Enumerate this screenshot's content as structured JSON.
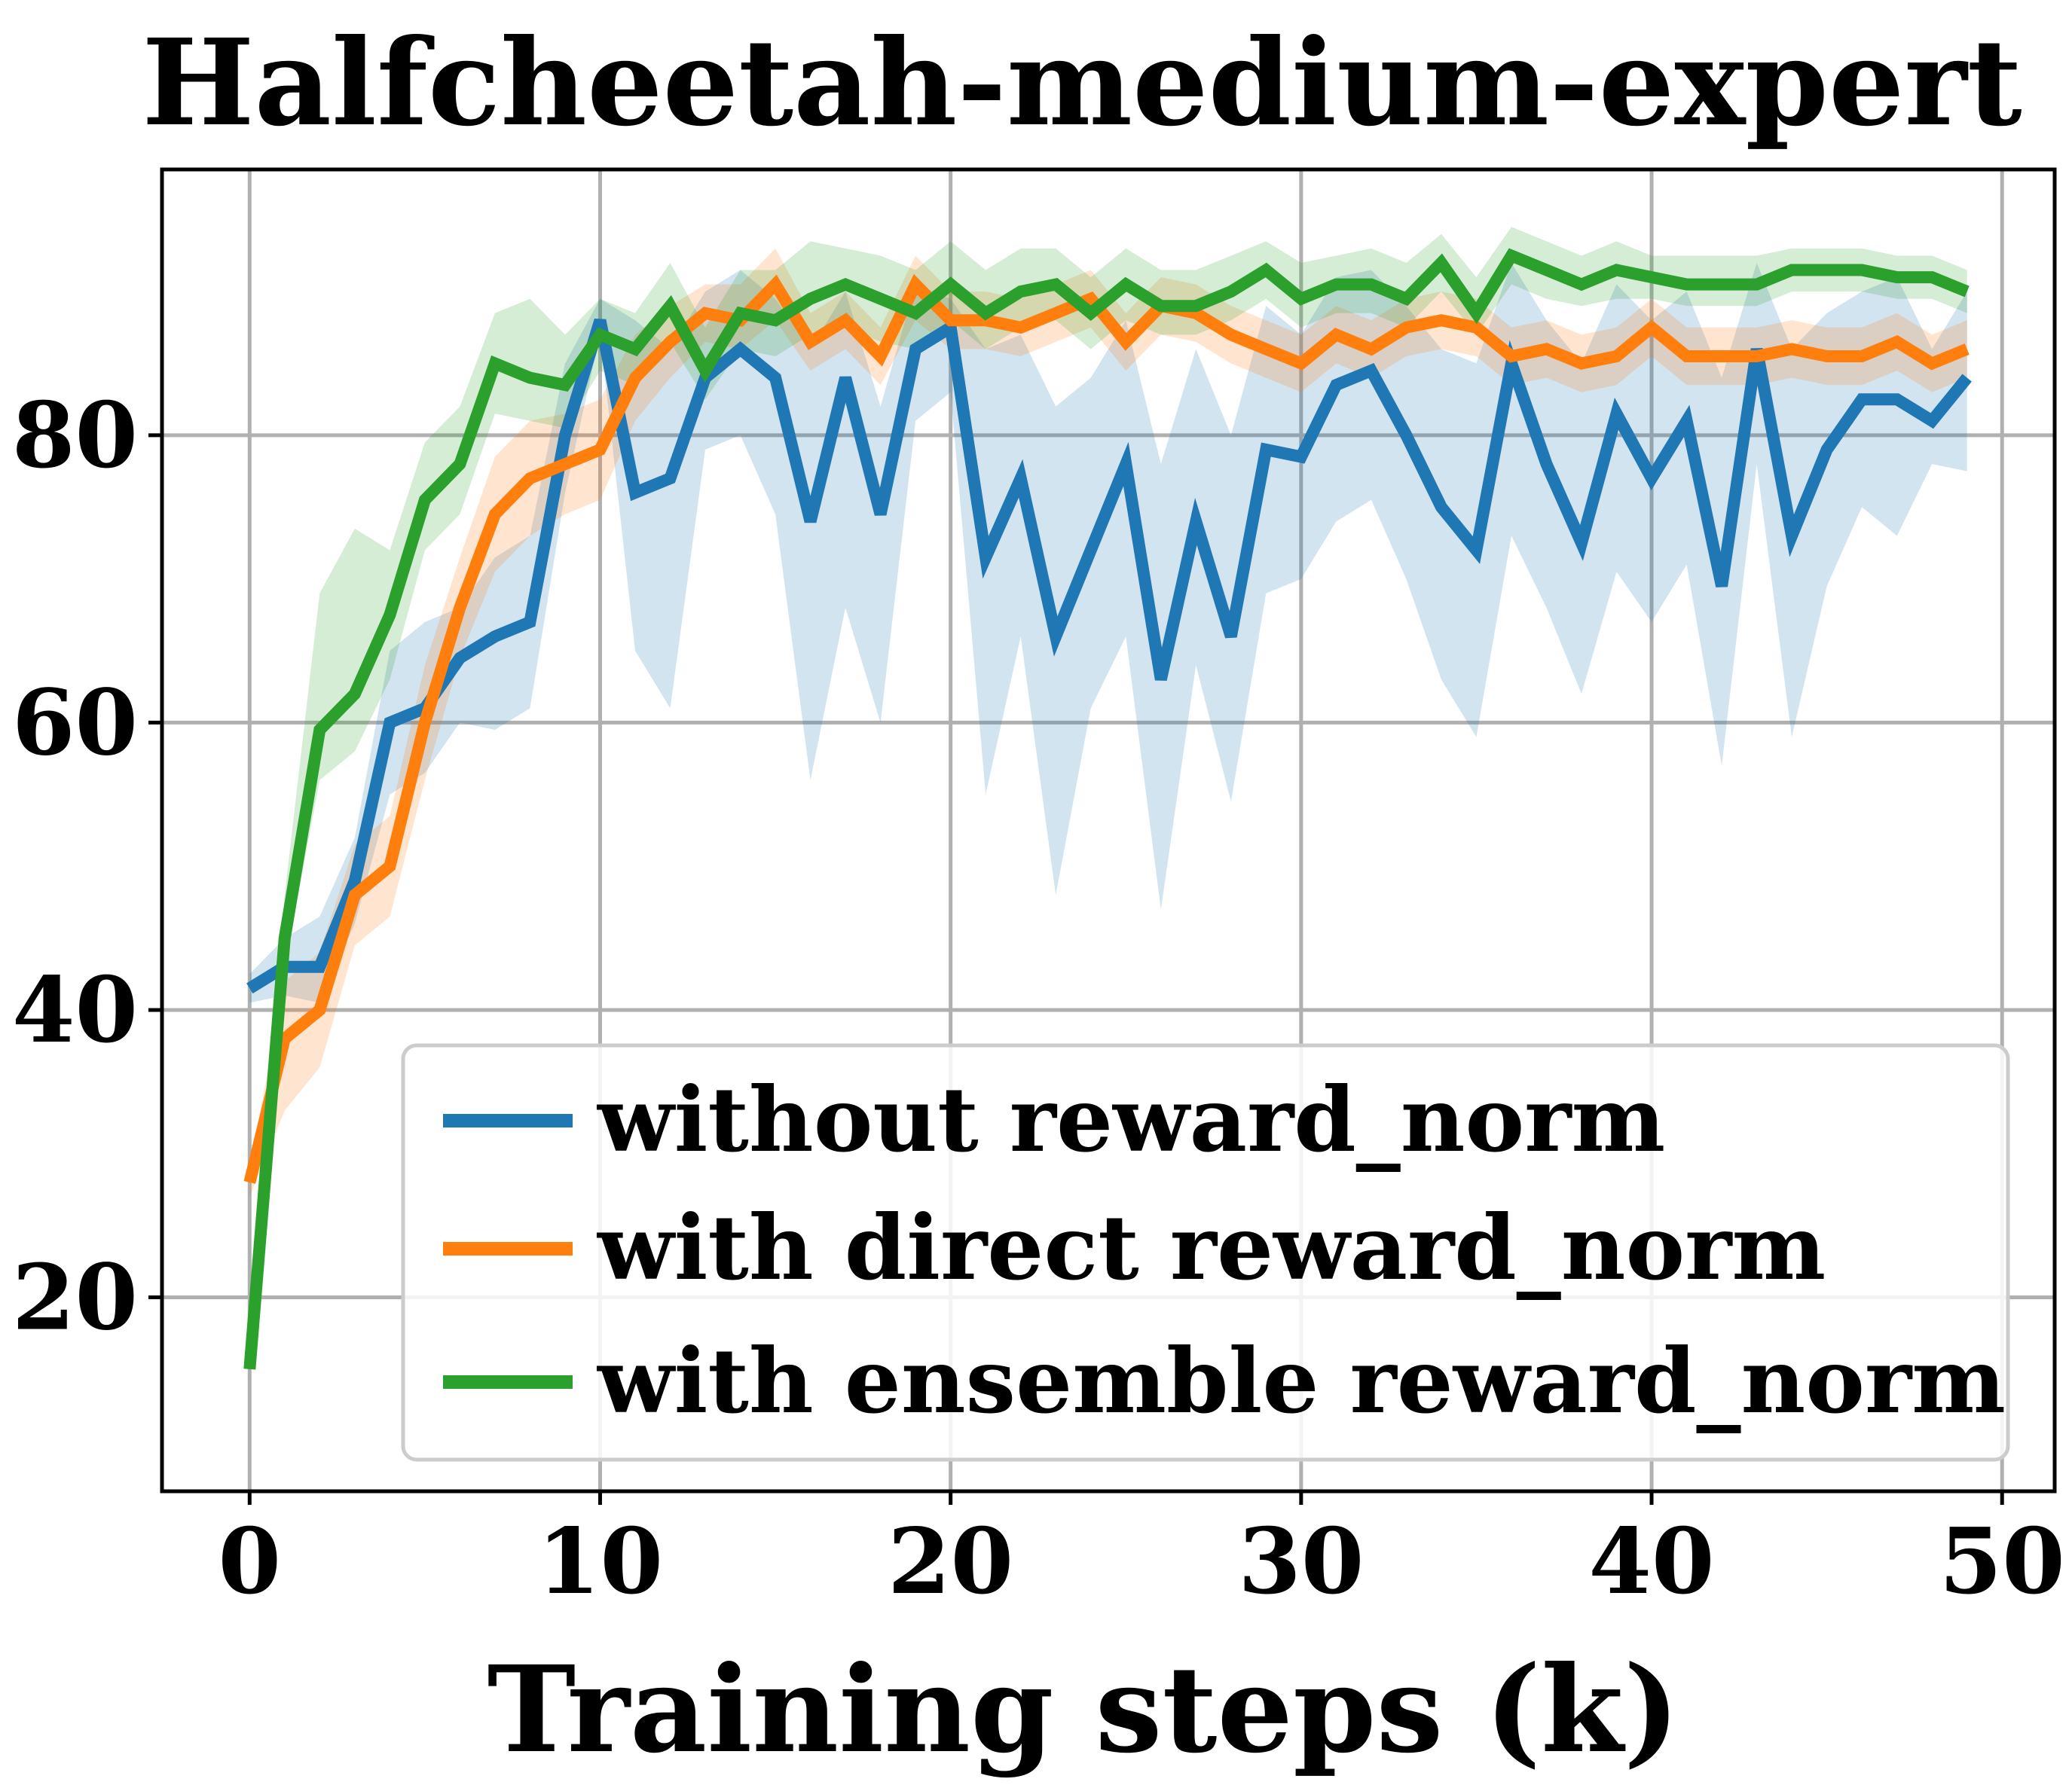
{
  "chart_data": {
    "type": "line",
    "title": "Halfcheetah-medium-expert",
    "xlabel": "Training steps (k)",
    "ylabel": "",
    "xlim": [
      -2.5,
      51.5
    ],
    "ylim": [
      6.5,
      98.5
    ],
    "xticks": [
      0,
      10,
      20,
      30,
      40,
      50
    ],
    "yticks": [
      20,
      40,
      60,
      80
    ],
    "xtick_labels": [
      "0",
      "10",
      "20",
      "30",
      "40",
      "50"
    ],
    "ytick_labels": [
      "20",
      "40",
      "60",
      "80"
    ],
    "grid": true,
    "legend_position": "lower-right",
    "x": [
      0,
      1,
      2,
      3,
      4,
      5,
      6,
      7,
      8,
      9,
      10,
      11,
      12,
      13,
      14,
      15,
      16,
      17,
      18,
      19,
      20,
      21,
      22,
      23,
      24,
      25,
      26,
      27,
      28,
      29,
      30,
      31,
      32,
      33,
      34,
      35,
      36,
      37,
      38,
      39,
      40,
      41,
      42,
      43,
      44,
      45,
      46,
      47,
      48,
      49
    ],
    "series": [
      {
        "name": "without reward_norm",
        "color": "#1f77b4",
        "values": [
          41.5,
          43.0,
          43.0,
          49.0,
          60.0,
          61.0,
          64.5,
          66.0,
          67.0,
          80.0,
          88.0,
          76.0,
          77.0,
          84.0,
          86.0,
          84.0,
          74.0,
          84.0,
          74.5,
          86.0,
          87.5,
          71.5,
          77.0,
          66.0,
          72.0,
          78.0,
          63.0,
          74.0,
          66.0,
          79.0,
          78.5,
          83.5,
          84.5,
          80.0,
          75.0,
          72.0,
          85.0,
          78.0,
          72.5,
          81.5,
          77.0,
          81.0,
          69.5,
          86.0,
          73.0,
          79.0,
          82.5,
          82.5,
          81.0,
          84.0
        ],
        "lower": [
          40.5,
          41.0,
          40.5,
          46.0,
          55.0,
          56.5,
          60.0,
          59.5,
          61.0,
          76.0,
          87.0,
          65.0,
          61.0,
          79.0,
          80.0,
          74.5,
          56.0,
          68.0,
          60.0,
          81.0,
          83.0,
          55.0,
          66.0,
          48.0,
          61.0,
          66.0,
          47.0,
          64.0,
          54.5,
          69.0,
          70.0,
          74.0,
          75.5,
          70.0,
          63.0,
          59.0,
          73.0,
          68.0,
          62.0,
          70.5,
          67.0,
          71.0,
          57.0,
          78.0,
          59.0,
          69.5,
          75.0,
          73.0,
          78.0,
          77.5
        ],
        "upper": [
          42.5,
          45.0,
          46.5,
          52.0,
          65.0,
          67.0,
          68.0,
          71.5,
          73.0,
          85.0,
          89.5,
          88.0,
          86.0,
          90.0,
          91.5,
          89.5,
          86.0,
          90.0,
          82.0,
          90.5,
          89.5,
          86.0,
          87.0,
          82.0,
          84.0,
          88.0,
          78.0,
          86.0,
          80.0,
          89.0,
          87.0,
          91.0,
          91.5,
          89.0,
          86.0,
          85.0,
          92.0,
          88.0,
          85.0,
          90.5,
          88.0,
          90.0,
          84.0,
          92.0,
          86.0,
          88.5,
          90.0,
          91.0,
          86.0,
          90.0
        ]
      },
      {
        "name": "with direct reward_norm",
        "color": "#ff7f0e",
        "values": [
          28.0,
          38.0,
          40.0,
          48.0,
          50.0,
          60.0,
          68.0,
          74.5,
          77.0,
          78.0,
          79.0,
          84.0,
          86.5,
          88.5,
          88.0,
          90.5,
          86.5,
          88.0,
          85.5,
          90.5,
          88.0,
          88.0,
          87.5,
          88.5,
          89.5,
          86.5,
          89.0,
          88.5,
          87.0,
          86.0,
          85.0,
          87.0,
          86.0,
          87.5,
          88.0,
          87.5,
          85.5,
          86.0,
          85.0,
          85.5,
          87.5,
          85.5,
          85.5,
          85.5,
          86.0,
          85.5,
          85.5,
          86.5,
          85.0,
          86.0
        ],
        "lower": [
          27.0,
          33.0,
          36.0,
          44.5,
          46.5,
          56.0,
          64.5,
          70.5,
          73.0,
          74.5,
          75.5,
          81.0,
          84.0,
          86.5,
          86.0,
          88.0,
          84.5,
          86.0,
          83.5,
          88.0,
          86.0,
          86.0,
          85.5,
          86.5,
          87.5,
          84.5,
          87.0,
          86.5,
          85.0,
          84.0,
          83.0,
          85.0,
          84.0,
          85.5,
          86.0,
          85.5,
          83.5,
          84.0,
          83.0,
          83.5,
          85.5,
          83.5,
          83.5,
          83.5,
          84.0,
          83.5,
          83.5,
          84.5,
          83.0,
          84.0
        ],
        "upper": [
          29.0,
          42.0,
          44.0,
          51.5,
          53.5,
          64.0,
          71.5,
          78.5,
          81.0,
          81.5,
          82.5,
          87.0,
          89.0,
          90.5,
          90.5,
          93.0,
          88.5,
          90.0,
          87.5,
          92.5,
          90.0,
          90.0,
          89.5,
          90.5,
          91.5,
          88.5,
          91.0,
          90.5,
          89.0,
          88.0,
          87.0,
          89.0,
          88.0,
          89.5,
          90.0,
          89.5,
          87.5,
          88.0,
          87.0,
          87.5,
          89.5,
          87.5,
          87.5,
          87.5,
          88.0,
          87.5,
          87.5,
          88.5,
          87.0,
          88.0
        ]
      },
      {
        "name": "with ensemble reward_norm",
        "color": "#2ca02c",
        "values": [
          15.0,
          45.0,
          59.5,
          62.0,
          67.5,
          75.5,
          78.0,
          85.0,
          84.0,
          83.5,
          87.0,
          86.0,
          89.0,
          84.5,
          88.5,
          88.0,
          89.5,
          90.5,
          89.5,
          88.5,
          90.5,
          88.5,
          90.0,
          90.5,
          88.5,
          90.5,
          89.0,
          89.0,
          90.0,
          91.5,
          89.5,
          90.5,
          90.5,
          89.5,
          92.0,
          88.5,
          92.5,
          91.5,
          90.5,
          91.5,
          91.0,
          90.5,
          90.5,
          90.5,
          91.5,
          91.5,
          91.5,
          91.0,
          91.0,
          90.0
        ],
        "lower": [
          14.5,
          43.0,
          56.0,
          58.0,
          63.0,
          72.0,
          74.5,
          81.5,
          81.0,
          80.5,
          84.5,
          83.5,
          86.5,
          82.5,
          86.0,
          85.5,
          87.0,
          87.5,
          86.5,
          86.0,
          88.0,
          86.0,
          87.5,
          88.0,
          86.0,
          88.0,
          87.0,
          87.0,
          88.0,
          89.5,
          87.5,
          88.5,
          88.5,
          87.5,
          90.0,
          87.0,
          90.5,
          89.5,
          89.0,
          89.5,
          89.5,
          89.0,
          89.0,
          89.0,
          90.0,
          90.0,
          90.0,
          89.5,
          89.5,
          88.5
        ],
        "upper": [
          15.5,
          48.0,
          69.0,
          73.5,
          72.0,
          79.5,
          82.0,
          88.5,
          89.5,
          87.0,
          89.5,
          88.5,
          92.0,
          87.5,
          91.5,
          91.5,
          93.5,
          93.0,
          92.5,
          91.5,
          93.5,
          91.5,
          93.0,
          93.0,
          91.0,
          93.0,
          91.5,
          91.5,
          92.5,
          93.5,
          92.0,
          92.5,
          93.0,
          92.0,
          94.0,
          91.0,
          94.5,
          93.5,
          92.5,
          93.5,
          92.5,
          92.5,
          92.5,
          92.5,
          93.0,
          93.0,
          93.0,
          92.5,
          92.5,
          91.5
        ]
      }
    ]
  }
}
